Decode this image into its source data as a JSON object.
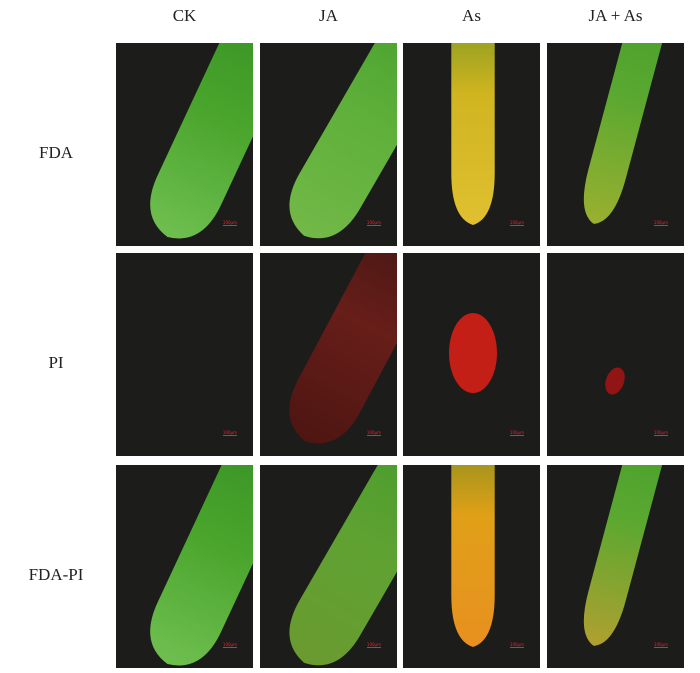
{
  "columns": [
    "CK",
    "JA",
    "As",
    "JA + As"
  ],
  "rows": [
    "FDA",
    "PI",
    "FDA-PI"
  ],
  "scale_bars": [
    [
      "100μm",
      "100μm",
      "100μm",
      "100μm"
    ],
    [
      "100μm",
      "100μm",
      "100μm",
      "100μm"
    ],
    [
      "100μm",
      "100μm",
      "100μm",
      "100μm"
    ]
  ]
}
